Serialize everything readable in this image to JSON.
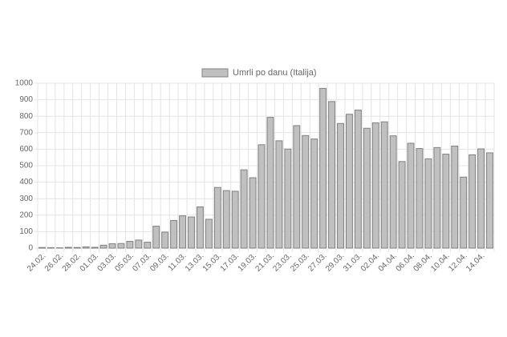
{
  "chart_data": {
    "type": "bar",
    "categories": [
      "24.02.",
      null,
      "26.02.",
      null,
      "28.02.",
      null,
      "01.03.",
      null,
      "03.03.",
      null,
      "05.03.",
      null,
      "07.03.",
      null,
      "09.03.",
      null,
      "11.03.",
      null,
      "13.03.",
      null,
      "15.03.",
      null,
      "17.03.",
      null,
      "19.03.",
      null,
      "21.03.",
      null,
      "23.03.",
      null,
      "25.03.",
      null,
      "27.03.",
      null,
      "29.03.",
      null,
      "31.03.",
      null,
      "02.04.",
      null,
      "04.04.",
      null,
      "06.04.",
      null,
      "08.04.",
      null,
      "10.04.",
      null,
      "12.04.",
      null,
      "14.04.",
      null
    ],
    "series": [
      {
        "name": "Umrli po danu (Italija)",
        "color": "#c0c0c0",
        "values": [
          4,
          3,
          2,
          5,
          4,
          8,
          5,
          18,
          27,
          28,
          41,
          49,
          36,
          133,
          97,
          168,
          196,
          189,
          250,
          175,
          368,
          349,
          345,
          475,
          427,
          627,
          793,
          651,
          601,
          743,
          683,
          662,
          969,
          889,
          756,
          812,
          837,
          727,
          760,
          766,
          681,
          525,
          636,
          604,
          542,
          610,
          570,
          619,
          431,
          566,
          602,
          578
        ]
      }
    ],
    "ylim": [
      0,
      1000
    ],
    "yticks": [
      0,
      100,
      200,
      300,
      400,
      500,
      600,
      700,
      800,
      900,
      1000
    ],
    "grid": true
  }
}
